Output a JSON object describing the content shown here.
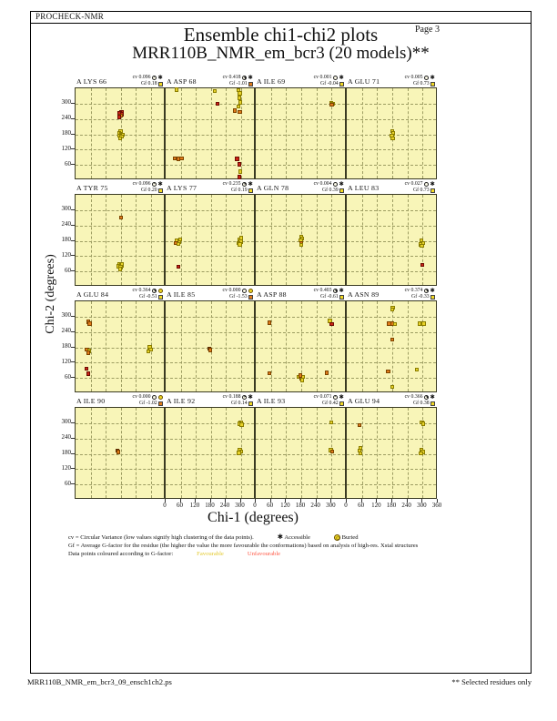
{
  "header": {
    "app_name": "PROCHECK-NMR",
    "page_label": "Page  3",
    "title": "Ensemble chi1-chi2 plots",
    "subtitle": "MRR110B_NMR_em_bcr3 (20 models)**"
  },
  "axes": {
    "x_title": "Chi-1 (degrees)",
    "y_title": "Chi-2 (degrees)"
  },
  "legend": {
    "cv_text": "cv = Circular Variance (low values signify high clustering of the data points).",
    "accessible_label": "Accessible",
    "buried_label": "Buried",
    "gf_text": "Gf = Average G-factor for the residue (the higher the value the more favourable the conformations) based on analysis of high-res. Xstal structures",
    "points_text": "Data points coloured according to G-factor:",
    "favourable_label": "Favourable",
    "unfavourable_label": "Unfavourable"
  },
  "footer": {
    "filename": "MRR110B_NMR_em_bcr3_09_ensch1ch2.ps",
    "note": "** Selected residues only"
  },
  "colors": {
    "favourable_point": "#e8d22a",
    "orange_point": "#e07b1a",
    "unfavourable_point": "#cc2414",
    "dark_point": "#a8500e",
    "plot_background": "#f8f5b8",
    "yellow_flag": "#f2d924",
    "orange_flag": "#e07b1a"
  },
  "chart_data": {
    "type": "scatter",
    "title": "Ensemble chi1-chi2 plots",
    "subtitle": "MRR110B_NMR_em_bcr3 (20 models)**",
    "xlabel": "Chi-1 (degrees)",
    "ylabel": "Chi-2 (degrees)",
    "xlim": [
      0,
      360
    ],
    "ylim": [
      0,
      360
    ],
    "tick_step": 60,
    "x_tick_labels": [
      0,
      60,
      120,
      180,
      240,
      300
    ],
    "x_end_label": 360,
    "x_ticks_labeled_columns": [
      2,
      3,
      4
    ],
    "y_tick_labels": [
      300,
      240,
      180,
      120,
      60
    ],
    "grid": "dashed gridlines every 60 degrees",
    "legend_position": "bottom",
    "point_color_key": {
      "y": "favourable (yellow)",
      "o": "intermediate (orange)",
      "r": "unfavourable (red)",
      "d": "unfavourable (dark orange)"
    },
    "subplots": [
      {
        "residue": "A LYS 66",
        "cv": "0.096",
        "exposure": "accessible",
        "gf": "0.18",
        "gf_flag": "yellow",
        "points": [
          [
            183,
            268,
            "r"
          ],
          [
            177,
            262,
            "r"
          ],
          [
            186,
            258,
            "r"
          ],
          [
            180,
            252,
            "o"
          ],
          [
            174,
            248,
            "r"
          ],
          [
            180,
            190,
            "y"
          ],
          [
            175,
            184,
            "y"
          ],
          [
            182,
            182,
            "y"
          ],
          [
            187,
            178,
            "y"
          ],
          [
            176,
            175,
            "y"
          ],
          [
            183,
            170,
            "y"
          ],
          [
            179,
            165,
            "y"
          ]
        ]
      },
      {
        "residue": "A ASP 68",
        "cv": "0.418",
        "exposure": "accessible",
        "gf": "-1.01",
        "gf_flag": "orange",
        "points": [
          [
            44,
            354,
            "y"
          ],
          [
            196,
            350,
            "y"
          ],
          [
            290,
            352,
            "y"
          ],
          [
            297,
            340,
            "y"
          ],
          [
            294,
            322,
            "y"
          ],
          [
            298,
            305,
            "y"
          ],
          [
            292,
            288,
            "y"
          ],
          [
            296,
            268,
            "o"
          ],
          [
            207,
            300,
            "r"
          ],
          [
            277,
            272,
            "o"
          ],
          [
            36,
            86,
            "o"
          ],
          [
            50,
            84,
            "o"
          ],
          [
            64,
            86,
            "o"
          ],
          [
            286,
            84,
            "r"
          ],
          [
            294,
            62,
            "r"
          ],
          [
            299,
            34,
            "y"
          ],
          [
            295,
            12,
            "r"
          ]
        ]
      },
      {
        "residue": "A ILE 69",
        "cv": "0.001",
        "exposure": "accessible",
        "gf": "-0.04",
        "gf_flag": "yellow",
        "points": [
          [
            298,
            302,
            "y"
          ],
          [
            304,
            300,
            "y"
          ],
          [
            300,
            295,
            "o"
          ]
        ]
      },
      {
        "residue": "A GLU 71",
        "cv": "0.005",
        "exposure": "accessible",
        "gf": "0.73",
        "gf_flag": "yellow",
        "points": [
          [
            180,
            192,
            "y"
          ],
          [
            183,
            183,
            "y"
          ],
          [
            178,
            174,
            "y"
          ],
          [
            182,
            164,
            "y"
          ]
        ]
      },
      {
        "residue": "A TYR 75",
        "cv": "0.096",
        "exposure": "accessible",
        "gf": "0.20",
        "gf_flag": "yellow",
        "points": [
          [
            182,
            270,
            "o"
          ],
          [
            177,
            88,
            "y"
          ],
          [
            184,
            84,
            "y"
          ],
          [
            172,
            80,
            "y"
          ],
          [
            180,
            76,
            "y"
          ],
          [
            186,
            90,
            "y"
          ],
          [
            178,
            70,
            "y"
          ]
        ]
      },
      {
        "residue": "A LYS 77",
        "cv": "0.235",
        "exposure": "accessible",
        "gf": "0.19",
        "gf_flag": "yellow",
        "points": [
          [
            46,
            182,
            "y"
          ],
          [
            54,
            176,
            "y"
          ],
          [
            42,
            172,
            "o"
          ],
          [
            50,
            168,
            "y"
          ],
          [
            58,
            186,
            "y"
          ],
          [
            294,
            184,
            "y"
          ],
          [
            300,
            176,
            "y"
          ],
          [
            290,
            170,
            "y"
          ],
          [
            297,
            166,
            "y"
          ],
          [
            302,
            190,
            "y"
          ],
          [
            50,
            78,
            "r"
          ]
        ]
      },
      {
        "residue": "A GLN 78",
        "cv": "0.004",
        "exposure": "accessible",
        "gf": "0.39",
        "gf_flag": "yellow",
        "points": [
          [
            180,
            196,
            "y"
          ],
          [
            183,
            188,
            "y"
          ],
          [
            178,
            181,
            "y"
          ],
          [
            181,
            172,
            "o"
          ],
          [
            179,
            164,
            "y"
          ]
        ]
      },
      {
        "residue": "A LEU 83",
        "cv": "0.027",
        "exposure": "accessible",
        "gf": "0.73",
        "gf_flag": "yellow",
        "points": [
          [
            295,
            180,
            "y"
          ],
          [
            300,
            172,
            "y"
          ],
          [
            292,
            166,
            "y"
          ],
          [
            297,
            160,
            "y"
          ],
          [
            298,
            85,
            "r"
          ]
        ]
      },
      {
        "residue": "A GLU 84",
        "cv": "0.364",
        "exposure": "buried",
        "gf": "-0.51",
        "gf_flag": "yellow",
        "points": [
          [
            50,
            280,
            "o"
          ],
          [
            57,
            272,
            "o"
          ],
          [
            46,
            172,
            "o"
          ],
          [
            54,
            166,
            "y"
          ],
          [
            50,
            158,
            "o"
          ],
          [
            44,
            96,
            "r"
          ],
          [
            52,
            76,
            "r"
          ],
          [
            294,
            176,
            "y"
          ],
          [
            300,
            170,
            "y"
          ],
          [
            291,
            164,
            "y"
          ],
          [
            297,
            182,
            "y"
          ]
        ]
      },
      {
        "residue": "A ILE 85",
        "cv": "0.000",
        "exposure": "buried",
        "gf": "-1.53",
        "gf_flag": "orange",
        "points": [
          [
            175,
            174,
            "d"
          ],
          [
            179,
            169,
            "o"
          ]
        ]
      },
      {
        "residue": "A ASP 88",
        "cv": "0.403",
        "exposure": "accessible",
        "gf": "-0.61",
        "gf_flag": "yellow",
        "points": [
          [
            55,
            276,
            "o"
          ],
          [
            294,
            284,
            "y"
          ],
          [
            300,
            270,
            "r"
          ],
          [
            55,
            78,
            "o"
          ],
          [
            171,
            64,
            "y"
          ],
          [
            179,
            58,
            "o"
          ],
          [
            186,
            64,
            "y"
          ],
          [
            177,
            70,
            "o"
          ],
          [
            183,
            52,
            "y"
          ],
          [
            280,
            80,
            "o"
          ]
        ]
      },
      {
        "residue": "A ASN 89",
        "cv": "0.374",
        "exposure": "accessible",
        "gf": "-0.33",
        "gf_flag": "yellow",
        "points": [
          [
            182,
            336,
            "y"
          ],
          [
            179,
            328,
            "y"
          ],
          [
            167,
            272,
            "o"
          ],
          [
            179,
            272,
            "o"
          ],
          [
            191,
            270,
            "y"
          ],
          [
            287,
            272,
            "y"
          ],
          [
            304,
            272,
            "y"
          ],
          [
            180,
            210,
            "o"
          ],
          [
            164,
            86,
            "o"
          ],
          [
            277,
            92,
            "y"
          ],
          [
            180,
            26,
            "y"
          ]
        ]
      },
      {
        "residue": "A ILE 90",
        "cv": "0.000",
        "exposure": "buried",
        "gf": "-1.02",
        "gf_flag": "orange",
        "points": [
          [
            168,
            192,
            "d"
          ],
          [
            172,
            187,
            "o"
          ]
        ]
      },
      {
        "residue": "A ILE 92",
        "cv": "0.188",
        "exposure": "accessible",
        "gf": "0.14",
        "gf_flag": "yellow",
        "points": [
          [
            300,
            304,
            "y"
          ],
          [
            295,
            298,
            "y"
          ],
          [
            303,
            294,
            "y"
          ],
          [
            296,
            194,
            "y"
          ],
          [
            301,
            188,
            "y"
          ],
          [
            293,
            183,
            "y"
          ]
        ]
      },
      {
        "residue": "A ILE 93",
        "cv": "0.071",
        "exposure": "accessible",
        "gf": "0.42",
        "gf_flag": "yellow",
        "points": [
          [
            298,
            302,
            "y"
          ],
          [
            297,
            194,
            "y"
          ],
          [
            303,
            188,
            "o"
          ]
        ]
      },
      {
        "residue": "A GLU 94",
        "cv": "0.366",
        "exposure": "accessible",
        "gf": "0.38",
        "gf_flag": "yellow",
        "points": [
          [
            50,
            292,
            "o"
          ],
          [
            53,
            202,
            "y"
          ],
          [
            50,
            192,
            "y"
          ],
          [
            55,
            182,
            "y"
          ],
          [
            297,
            304,
            "y"
          ],
          [
            302,
            297,
            "y"
          ],
          [
            295,
            194,
            "y"
          ],
          [
            300,
            187,
            "y"
          ],
          [
            293,
            181,
            "y"
          ]
        ]
      }
    ]
  }
}
